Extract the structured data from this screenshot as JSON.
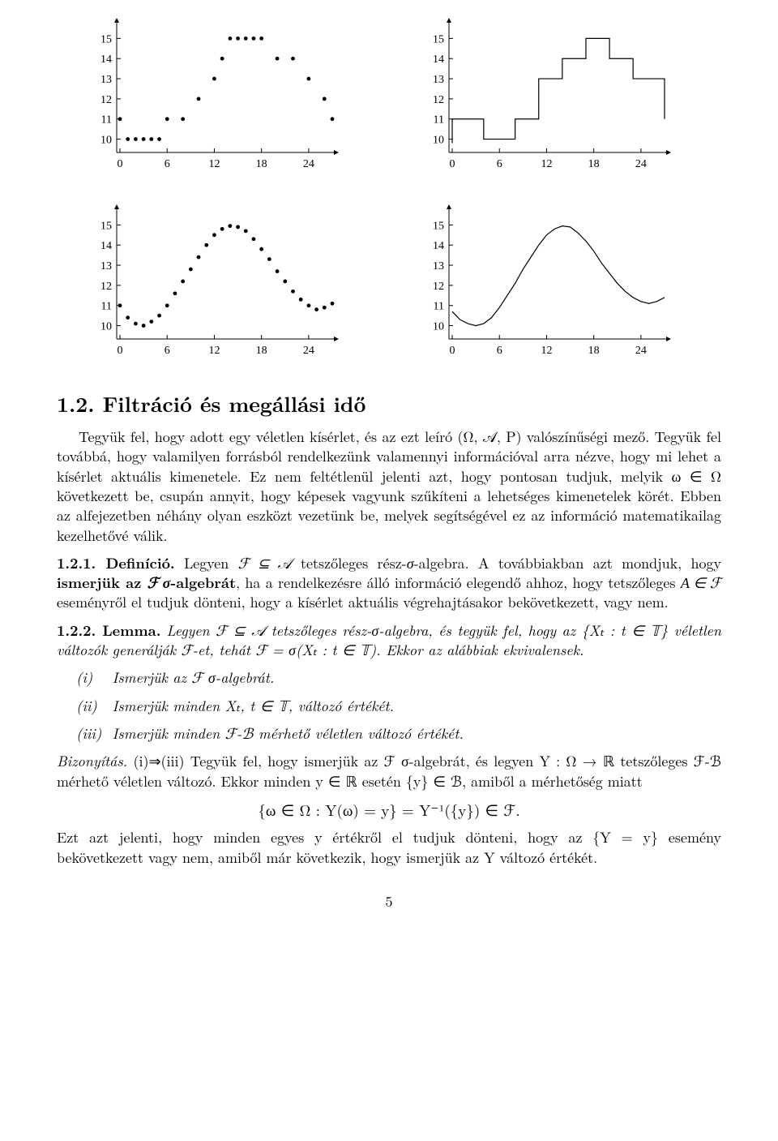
{
  "charts": {
    "common_axes": {
      "xticks": [
        0,
        6,
        12,
        18,
        24
      ],
      "yticks": [
        10,
        11,
        12,
        13,
        14,
        15
      ],
      "xlim": [
        0,
        27
      ],
      "ylim": [
        9.5,
        15.7
      ],
      "tick_fontsize": 14,
      "axis_color": "#000000",
      "point_color": "#000000",
      "line_color": "#000000",
      "line_width": 1.2,
      "marker_size": 2.4
    },
    "top_left": {
      "type": "scatter",
      "x": [
        0,
        1,
        2,
        3,
        4,
        5,
        6,
        8,
        10,
        12,
        13,
        14,
        15,
        16,
        17,
        18,
        20,
        22,
        24,
        26,
        27
      ],
      "y": [
        11,
        10,
        10,
        10,
        10,
        10,
        11,
        11,
        12,
        13,
        14,
        15,
        15,
        15,
        15,
        15,
        14,
        14,
        13,
        12,
        11
      ]
    },
    "top_right": {
      "type": "step",
      "x": [
        0,
        0,
        4,
        4,
        8,
        8,
        11,
        11,
        14,
        14,
        17,
        17,
        20,
        20,
        23,
        23,
        27,
        27
      ],
      "y": [
        9.8,
        11,
        11,
        10,
        10,
        11,
        11,
        13,
        13,
        14,
        14,
        15,
        15,
        14,
        14,
        13,
        13,
        11
      ]
    },
    "bottom_left": {
      "type": "scatter",
      "x": [
        0,
        1,
        2,
        3,
        4,
        5,
        6,
        7,
        8,
        9,
        10,
        11,
        12,
        13,
        14,
        15,
        16,
        17,
        18,
        19,
        20,
        21,
        22,
        23,
        24,
        25,
        26,
        27
      ],
      "y": [
        11.0,
        10.4,
        10.1,
        10.0,
        10.2,
        10.5,
        11.0,
        11.6,
        12.2,
        12.8,
        13.4,
        14.0,
        14.5,
        14.8,
        14.95,
        14.9,
        14.7,
        14.3,
        13.8,
        13.3,
        12.7,
        12.2,
        11.7,
        11.3,
        11.0,
        10.8,
        10.9,
        11.1
      ]
    },
    "bottom_right": {
      "type": "line",
      "x": [
        0,
        1,
        2,
        3,
        4,
        5,
        6,
        7,
        8,
        9,
        10,
        11,
        12,
        13,
        14,
        15,
        16,
        17,
        18,
        19,
        20,
        21,
        22,
        23,
        24,
        25,
        26,
        27
      ],
      "y": [
        10.7,
        10.3,
        10.1,
        10.0,
        10.1,
        10.4,
        10.9,
        11.5,
        12.1,
        12.8,
        13.4,
        14.0,
        14.5,
        14.8,
        14.95,
        14.9,
        14.6,
        14.2,
        13.7,
        13.1,
        12.6,
        12.1,
        11.7,
        11.4,
        11.2,
        11.1,
        11.2,
        11.4
      ]
    }
  },
  "section": {
    "number": "1.2.",
    "title": "Filtráció és megállási idő"
  },
  "paragraphs": {
    "intro": "Tegyük fel, hogy adott egy véletlen kísérlet, és az ezt leíró (Ω, 𝒜, P) valószínűségi mező. Tegyük fel továbbá, hogy valamilyen forrásból rendelkezünk valamennyi információval arra nézve, hogy mi lehet a kísérlet aktuális kimenetele. Ez nem feltétlenül jelenti azt, hogy pontosan tudjuk, melyik ω ∈ Ω következett be, csupán annyit, hogy képesek vagyunk szűkíteni a lehetséges kimenetelek körét. Ebben az alfejezetben néhány olyan eszközt vezetünk be, melyek segítségével ez az információ matematikailag kezelhetővé válik.",
    "def_label": "1.2.1. Definíció.",
    "def_body": "Legyen ℱ ⊆ 𝒜 tetszőleges rész-σ-algebra. A továbbiakban azt mondjuk, hogy ismerjük az ℱ σ-algebrát, ha a rendelkezésre álló információ elegendő ahhoz, hogy tetszőleges A ∈ ℱ eseményről el tudjuk dönteni, hogy a kísérlet aktuális végrehajtásakor bekövetkezett, vagy nem.",
    "lemma_label": "1.2.2. Lemma.",
    "lemma_body": "Legyen ℱ ⊆ 𝒜 tetszőleges rész-σ-algebra, és tegyük fel, hogy az {Xₜ : t ∈ 𝕋} véletlen változók generálják ℱ-et, tehát ℱ = σ(Xₜ : t ∈ 𝕋). Ekkor az alábbiak ekvivalensek.",
    "item_i": "Ismerjük az ℱ σ-algebrát.",
    "item_ii": "Ismerjük minden Xₜ, t ∈ 𝕋, változó értékét.",
    "item_iii": "Ismerjük minden ℱ-ℬ mérhető véletlen változó értékét.",
    "proof_label": "Bizonyítás.",
    "proof_body1": "(i)⇒(iii) Tegyük fel, hogy ismerjük az ℱ σ-algebrát, és legyen Y : Ω → ℝ tetszőleges ℱ-ℬ mérhető véletlen változó. Ekkor minden y ∈ ℝ esetén {y} ∈ ℬ, amiből a mérhetőség miatt",
    "proof_eq": "{ω ∈ Ω : Y(ω) = y} = Y⁻¹({y}) ∈ ℱ.",
    "proof_body2": "Ezt azt jelenti, hogy minden egyes y értékről el tudjuk dönteni, hogy az {Y = y} esemény bekövetkezett vagy nem, amiből már következik, hogy ismerjük az Y változó értékét."
  },
  "list_markers": {
    "i": "(i)",
    "ii": "(ii)",
    "iii": "(iii)"
  },
  "page_number": "5"
}
